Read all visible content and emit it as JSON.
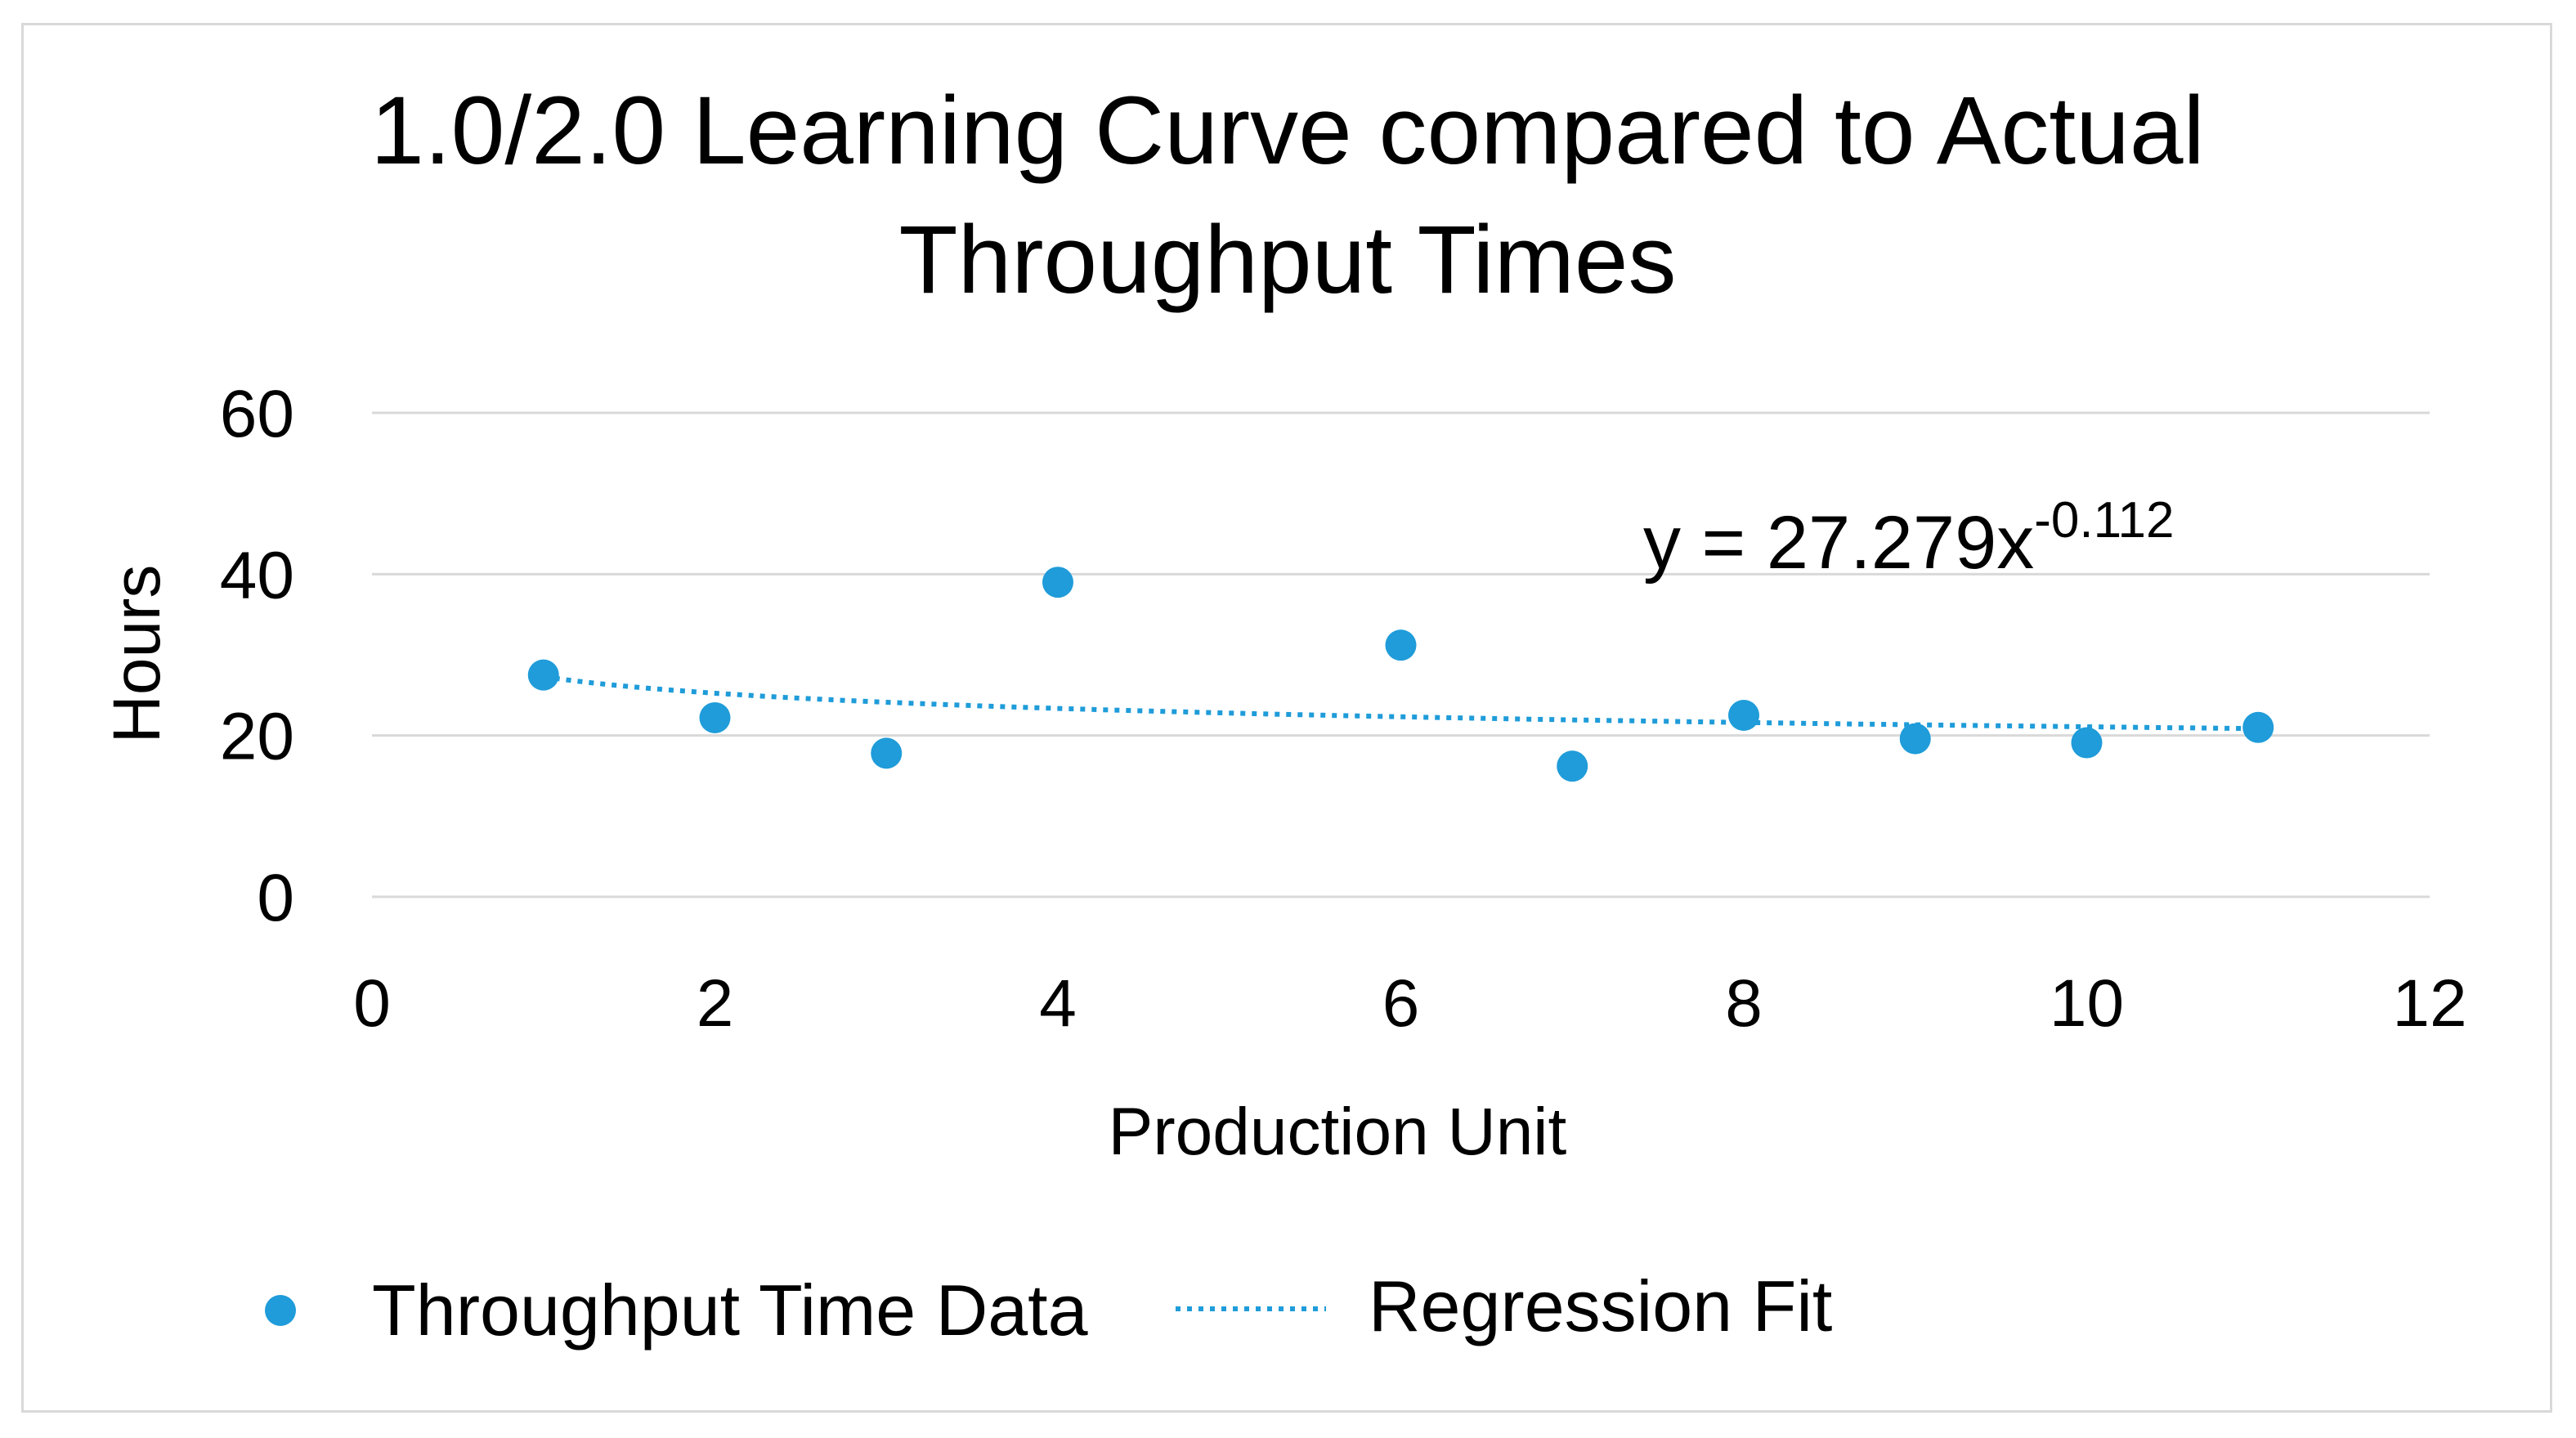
{
  "chart_data": {
    "type": "scatter",
    "title_lines": [
      "1.0/2.0 Learning Curve compared to Actual",
      "Throughput Times"
    ],
    "xlabel": "Production Unit",
    "ylabel": "Hours",
    "xlim": [
      0,
      12
    ],
    "ylim": [
      0,
      60
    ],
    "x_ticks": [
      0,
      2,
      4,
      6,
      8,
      10,
      12
    ],
    "y_ticks": [
      0,
      20,
      40,
      60
    ],
    "grid": "horizontal",
    "legend_position": "bottom",
    "series": [
      {
        "name": "Throughput Time Data",
        "kind": "points",
        "color": "#1f9cd9",
        "x": [
          1,
          2,
          3,
          4,
          6,
          7,
          8,
          9,
          10,
          11
        ],
        "y": [
          27.5,
          22.2,
          17.8,
          39.0,
          31.2,
          16.2,
          22.5,
          19.6,
          19.1,
          21.0
        ]
      },
      {
        "name": "Regression Fit",
        "kind": "dotted-line",
        "color": "#1f9cd9",
        "equation": "y = 27.279x",
        "exponent": "-0.112",
        "coefficient": 27.279,
        "power": -0.112,
        "x_range": [
          1,
          11
        ]
      }
    ]
  }
}
